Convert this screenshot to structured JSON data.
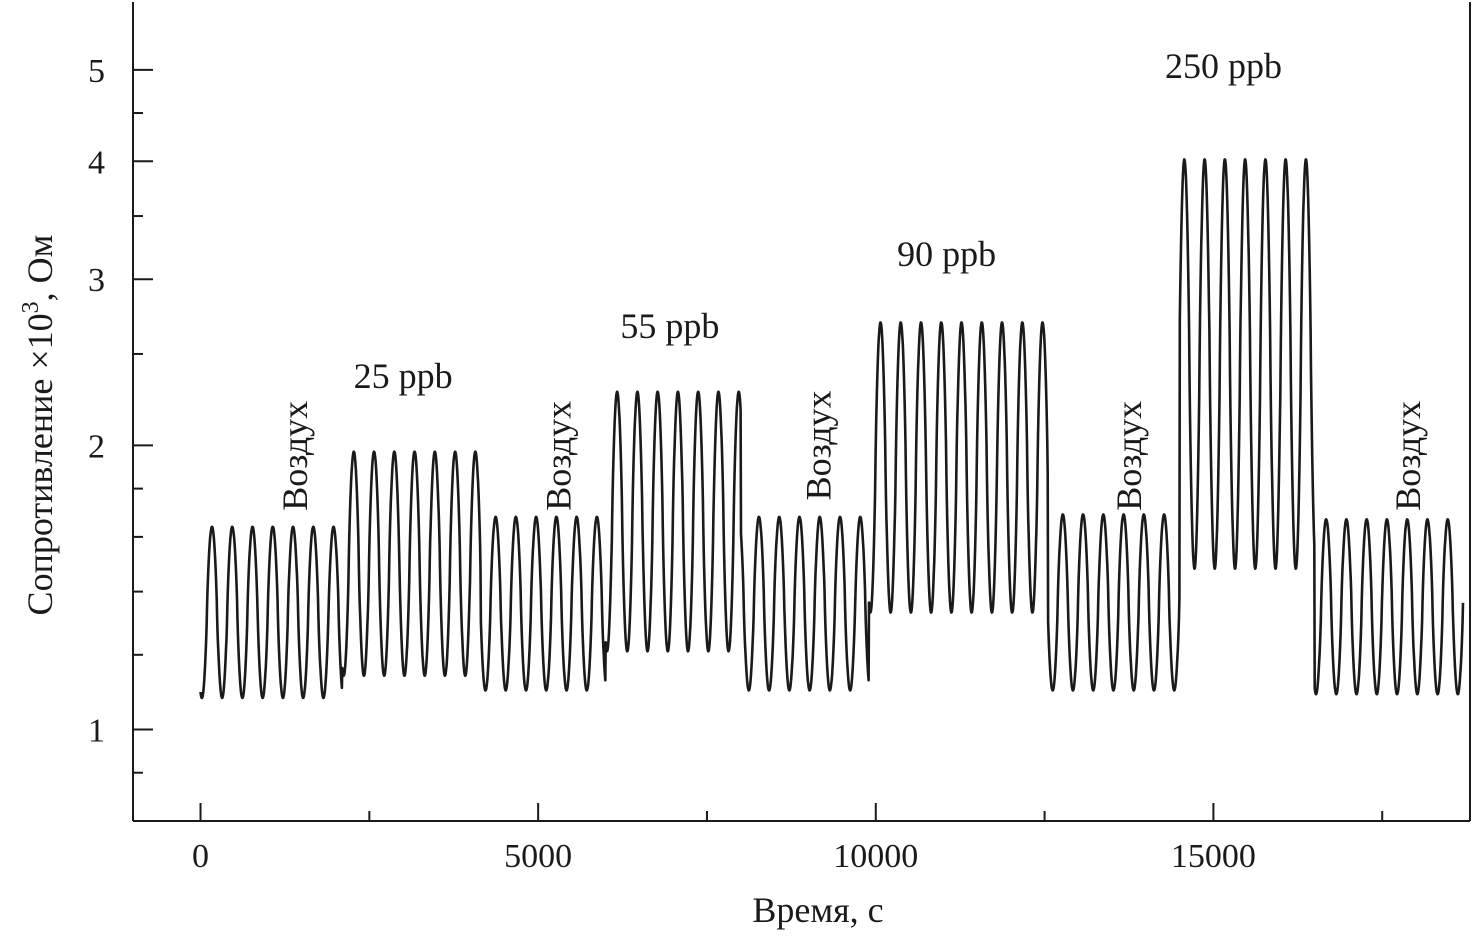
{
  "chart_data": {
    "type": "line",
    "title": "",
    "xlabel": "Время, с",
    "ylabel_main": "Сопротивление ×10",
    "ylabel_exp": "3",
    "ylabel_unit": ", Ом",
    "y_scale": "log",
    "xlim": [
      -1000,
      18800
    ],
    "ylim": [
      0.8,
      5.9
    ],
    "grid": false,
    "legend": "none",
    "line_color": "#1a1a1a",
    "x_ticks": [
      {
        "value": 0,
        "label": "0"
      },
      {
        "value": 5000,
        "label": "5000"
      },
      {
        "value": 10000,
        "label": "10000"
      },
      {
        "value": 15000,
        "label": "15000"
      }
    ],
    "x_minor_ticks": [
      2500,
      7500,
      12500,
      17500
    ],
    "y_ticks": [
      {
        "value": 1,
        "label": "1"
      },
      {
        "value": 2,
        "label": "2"
      },
      {
        "value": 3,
        "label": "3"
      },
      {
        "value": 4,
        "label": "4"
      },
      {
        "value": 5,
        "label": "5"
      }
    ],
    "y_minor_ticks": [
      0.8,
      0.9,
      1.2,
      1.4,
      1.6,
      1.8,
      2.5,
      3.5,
      4.5
    ],
    "cycle_period_s": 300,
    "segments": [
      {
        "label": "Воздух",
        "orientation": "vertical",
        "x_start": 0,
        "x_end": 2100,
        "peak": 1.64,
        "trough": 1.08,
        "label_x": 1400,
        "label_y": 1.95
      },
      {
        "label": "25 ppb",
        "orientation": "horizontal",
        "x_start": 2100,
        "x_end": 4150,
        "peak": 1.97,
        "trough": 1.14,
        "label_x": 3000,
        "label_y": 2.3
      },
      {
        "label": "Воздух",
        "orientation": "vertical",
        "x_start": 4150,
        "x_end": 6000,
        "peak": 1.68,
        "trough": 1.1,
        "label_x": 5300,
        "label_y": 1.95
      },
      {
        "label": "55 ppb",
        "orientation": "horizontal",
        "x_start": 6000,
        "x_end": 8000,
        "peak": 2.28,
        "trough": 1.21,
        "label_x": 6950,
        "label_y": 2.6
      },
      {
        "label": "Воздух",
        "orientation": "vertical",
        "x_start": 8000,
        "x_end": 9900,
        "peak": 1.68,
        "trough": 1.1,
        "label_x": 9150,
        "label_y": 2.0
      },
      {
        "label": "90 ppb",
        "orientation": "horizontal",
        "x_start": 9900,
        "x_end": 12550,
        "peak": 2.7,
        "trough": 1.33,
        "label_x": 11050,
        "label_y": 3.1
      },
      {
        "label": "Воздух",
        "orientation": "vertical",
        "x_start": 12550,
        "x_end": 14500,
        "peak": 1.69,
        "trough": 1.1,
        "label_x": 13750,
        "label_y": 1.95
      },
      {
        "label": "250 ppb",
        "orientation": "horizontal",
        "x_start": 14500,
        "x_end": 16500,
        "peak": 4.02,
        "trough": 1.48,
        "label_x": 15150,
        "label_y": 4.9
      },
      {
        "label": "Воздух",
        "orientation": "vertical",
        "x_start": 16500,
        "x_end": 18700,
        "peak": 1.67,
        "trough": 1.09,
        "label_x": 17880,
        "label_y": 1.95
      }
    ]
  }
}
